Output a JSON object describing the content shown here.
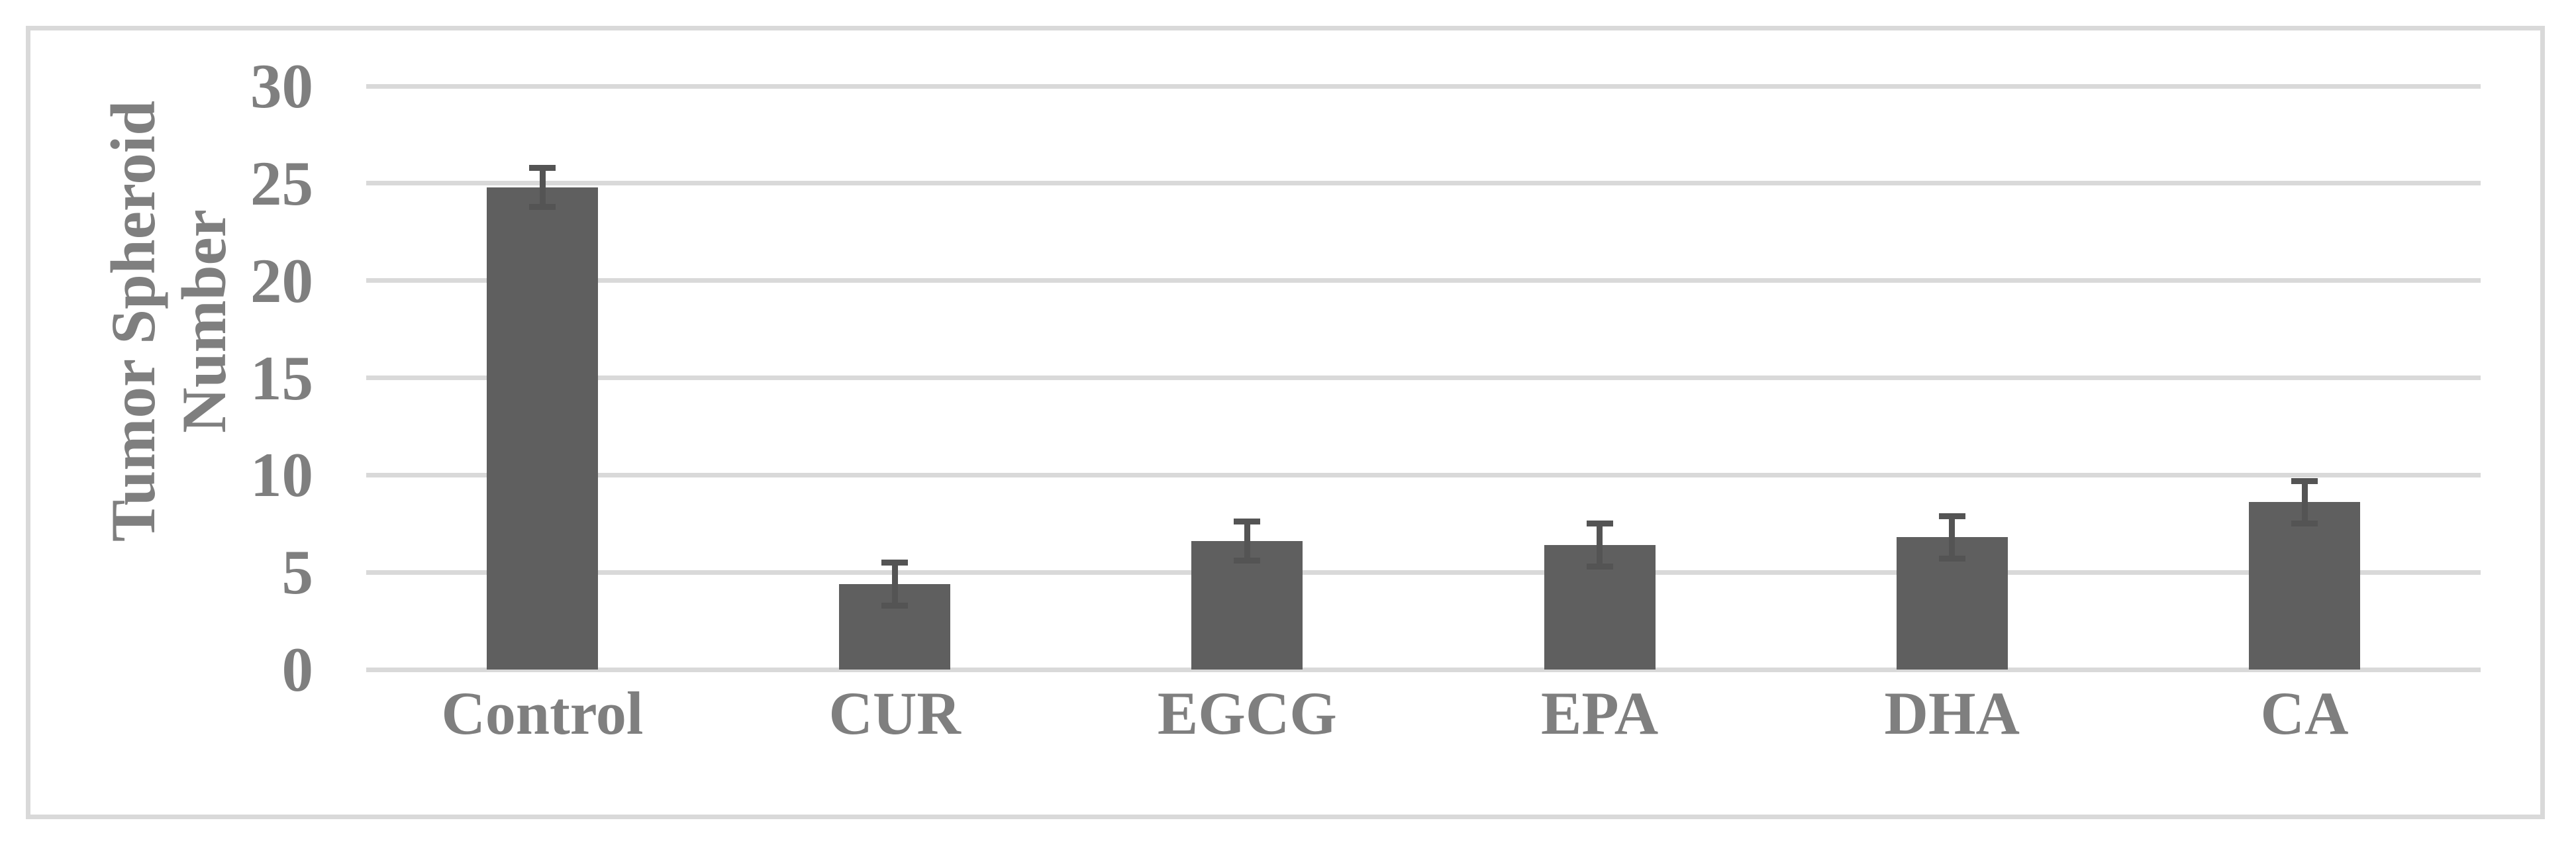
{
  "chart_data": {
    "type": "bar",
    "title": "",
    "categories": [
      "Control",
      "CUR",
      "EGCG",
      "EPA",
      "DHA",
      "CA"
    ],
    "values": [
      24.8,
      4.4,
      6.6,
      6.4,
      6.8,
      8.6
    ],
    "errors": [
      1.0,
      1.1,
      1.0,
      1.1,
      1.1,
      1.1
    ],
    "ylabel": "Tumor Spheroid Number",
    "ylabel_lines": [
      "Tumor Spheroid",
      "Number"
    ],
    "yticks": [
      0,
      5,
      10,
      15,
      20,
      25,
      30
    ],
    "ylim": [
      0,
      30
    ],
    "xlabel": "",
    "grid": "horizontal-only",
    "legend": "none",
    "colors": {
      "bar": "#5f5f5f",
      "error_bar": "#545454",
      "gridline": "#d9d9d9",
      "frame_border": "#d9d9d9",
      "text": "#7f7f7f",
      "background": "#ffffff"
    }
  }
}
